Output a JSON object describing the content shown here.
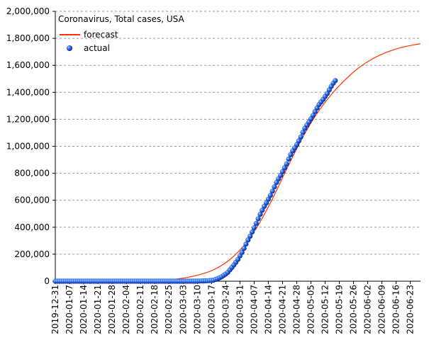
{
  "chart_data": {
    "type": "line",
    "title": "Coronavirus, Total cases, USA",
    "xlabel": "",
    "ylabel": "",
    "ylim": [
      0,
      2000000
    ],
    "yticks": [
      "0",
      "200,000",
      "400,000",
      "600,000",
      "800,000",
      "1,000,000",
      "1,200,000",
      "1,400,000",
      "1,600,000",
      "1,800,000",
      "2,000,000"
    ],
    "yticks_values": [
      0,
      200000,
      400000,
      600000,
      800000,
      1000000,
      1200000,
      1400000,
      1600000,
      1800000,
      2000000
    ],
    "xticks": [
      "2019-12-31",
      "2020-01-07",
      "2020-01-14",
      "2020-01-21",
      "2020-01-28",
      "2020-02-04",
      "2020-02-11",
      "2020-02-18",
      "2020-02-25",
      "2020-03-03",
      "2020-03-10",
      "2020-03-17",
      "2020-03-24",
      "2020-03-31",
      "2020-04-07",
      "2020-04-14",
      "2020-04-21",
      "2020-04-28",
      "2020-05-05",
      "2020-05-12",
      "2020-05-19",
      "2020-05-26",
      "2020-06-02",
      "2020-06-09",
      "2020-06-16",
      "2020-06-23"
    ],
    "xlim": [
      "2019-12-31",
      "2020-06-28"
    ],
    "grid": true,
    "legend_position": "top-left",
    "series": [
      {
        "name": "forecast",
        "type": "line",
        "color": "#ff3300",
        "points": [
          [
            "2020-02-20",
            0
          ],
          [
            "2020-02-27",
            12000
          ],
          [
            "2020-03-05",
            28000
          ],
          [
            "2020-03-12",
            52000
          ],
          [
            "2020-03-19",
            92000
          ],
          [
            "2020-03-26",
            160000
          ],
          [
            "2020-04-02",
            265000
          ],
          [
            "2020-04-09",
            415000
          ],
          [
            "2020-04-16",
            610000
          ],
          [
            "2020-04-23",
            830000
          ],
          [
            "2020-04-30",
            1040000
          ],
          [
            "2020-05-07",
            1220000
          ],
          [
            "2020-05-14",
            1365000
          ],
          [
            "2020-05-21",
            1480000
          ],
          [
            "2020-05-28",
            1575000
          ],
          [
            "2020-06-04",
            1645000
          ],
          [
            "2020-06-11",
            1695000
          ],
          [
            "2020-06-18",
            1730000
          ],
          [
            "2020-06-25",
            1752000
          ],
          [
            "2020-06-28",
            1760000
          ]
        ]
      },
      {
        "name": "actual",
        "type": "scatter",
        "color": "#1a4fd6",
        "points": [
          [
            "2020-03-10",
            900
          ],
          [
            "2020-03-11",
            1300
          ],
          [
            "2020-03-12",
            1700
          ],
          [
            "2020-03-13",
            2200
          ],
          [
            "2020-03-14",
            2900
          ],
          [
            "2020-03-15",
            3500
          ],
          [
            "2020-03-16",
            4600
          ],
          [
            "2020-03-17",
            6400
          ],
          [
            "2020-03-18",
            7800
          ],
          [
            "2020-03-19",
            13700
          ],
          [
            "2020-03-20",
            19100
          ],
          [
            "2020-03-21",
            25500
          ],
          [
            "2020-03-22",
            33300
          ],
          [
            "2020-03-23",
            43800
          ],
          [
            "2020-03-24",
            53700
          ],
          [
            "2020-03-25",
            65800
          ],
          [
            "2020-03-26",
            83800
          ],
          [
            "2020-03-27",
            101700
          ],
          [
            "2020-03-28",
            121500
          ],
          [
            "2020-03-29",
            140900
          ],
          [
            "2020-03-30",
            161800
          ],
          [
            "2020-03-31",
            188200
          ],
          [
            "2020-04-01",
            213400
          ],
          [
            "2020-04-02",
            243500
          ],
          [
            "2020-04-03",
            275600
          ],
          [
            "2020-04-04",
            305800
          ],
          [
            "2020-04-05",
            334100
          ],
          [
            "2020-04-06",
            364700
          ],
          [
            "2020-04-07",
            396200
          ],
          [
            "2020-04-08",
            429000
          ],
          [
            "2020-04-09",
            462800
          ],
          [
            "2020-04-10",
            496500
          ],
          [
            "2020-04-11",
            526400
          ],
          [
            "2020-04-12",
            555300
          ],
          [
            "2020-04-13",
            580600
          ],
          [
            "2020-04-14",
            607700
          ],
          [
            "2020-04-15",
            636400
          ],
          [
            "2020-04-16",
            667800
          ],
          [
            "2020-04-17",
            699700
          ],
          [
            "2020-04-18",
            732200
          ],
          [
            "2020-04-19",
            759100
          ],
          [
            "2020-04-20",
            784300
          ],
          [
            "2020-04-21",
            811900
          ],
          [
            "2020-04-22",
            840400
          ],
          [
            "2020-04-23",
            869200
          ],
          [
            "2020-04-24",
            905400
          ],
          [
            "2020-04-25",
            938100
          ],
          [
            "2020-04-26",
            965800
          ],
          [
            "2020-04-27",
            988200
          ],
          [
            "2020-04-28",
            1012600
          ],
          [
            "2020-04-29",
            1039900
          ],
          [
            "2020-04-30",
            1069400
          ],
          [
            "2020-05-01",
            1103500
          ],
          [
            "2020-05-02",
            1133100
          ],
          [
            "2020-05-03",
            1158000
          ],
          [
            "2020-05-04",
            1180400
          ],
          [
            "2020-05-05",
            1204400
          ],
          [
            "2020-05-06",
            1229300
          ],
          [
            "2020-05-07",
            1257000
          ],
          [
            "2020-05-08",
            1283900
          ],
          [
            "2020-05-09",
            1309500
          ],
          [
            "2020-05-10",
            1329300
          ],
          [
            "2020-05-11",
            1347900
          ],
          [
            "2020-05-12",
            1369400
          ],
          [
            "2020-05-13",
            1390800
          ],
          [
            "2020-05-14",
            1417800
          ],
          [
            "2020-05-15",
            1443400
          ],
          [
            "2020-05-16",
            1467800
          ],
          [
            "2020-05-17",
            1486700
          ]
        ]
      }
    ]
  }
}
